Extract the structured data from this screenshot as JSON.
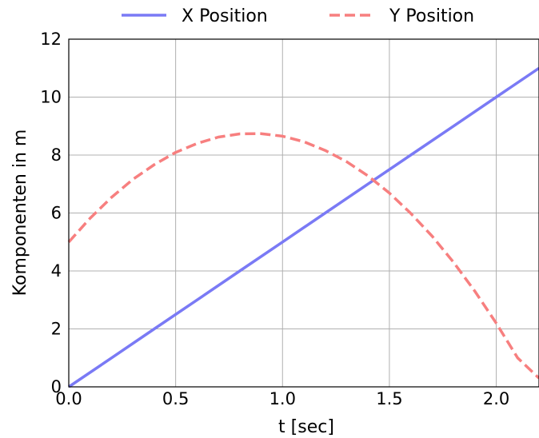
{
  "chart_data": {
    "type": "line",
    "xlabel": "t [sec]",
    "ylabel": "Komponenten in m",
    "xlim": [
      0.0,
      2.2
    ],
    "ylim": [
      0,
      12
    ],
    "xticks": [
      "0.0",
      "0.5",
      "1.0",
      "1.5",
      "2.0"
    ],
    "xtick_values": [
      0.0,
      0.5,
      1.0,
      1.5,
      2.0
    ],
    "yticks": [
      "0",
      "2",
      "4",
      "6",
      "8",
      "10",
      "12"
    ],
    "ytick_values": [
      0,
      2,
      4,
      6,
      8,
      10,
      12
    ],
    "grid": true,
    "legend_position": "top-center-outside",
    "series": [
      {
        "name": "X Position",
        "color": "#7a7af5",
        "style": "solid",
        "x": [
          0.0,
          0.2,
          0.4,
          0.6,
          0.8,
          1.0,
          1.2,
          1.4,
          1.6,
          1.8,
          2.0,
          2.2
        ],
        "y": [
          0.0,
          1.0,
          2.0,
          3.0,
          4.0,
          5.0,
          6.0,
          7.0,
          8.0,
          9.0,
          10.0,
          11.0
        ]
      },
      {
        "name": "Y Position",
        "color": "#f77f7f",
        "style": "dashed",
        "x": [
          0.0,
          0.1,
          0.2,
          0.3,
          0.4,
          0.5,
          0.6,
          0.7,
          0.8,
          0.9,
          1.0,
          1.1,
          1.2,
          1.3,
          1.4,
          1.5,
          1.6,
          1.7,
          1.8,
          1.9,
          2.0,
          2.1,
          2.2
        ],
        "y": [
          5.0,
          5.82,
          6.54,
          7.16,
          7.67,
          8.09,
          8.4,
          8.62,
          8.73,
          8.74,
          8.65,
          8.46,
          8.16,
          7.77,
          7.28,
          6.69,
          5.99,
          5.2,
          4.3,
          3.3,
          2.2,
          1.0,
          0.3
        ]
      }
    ]
  }
}
